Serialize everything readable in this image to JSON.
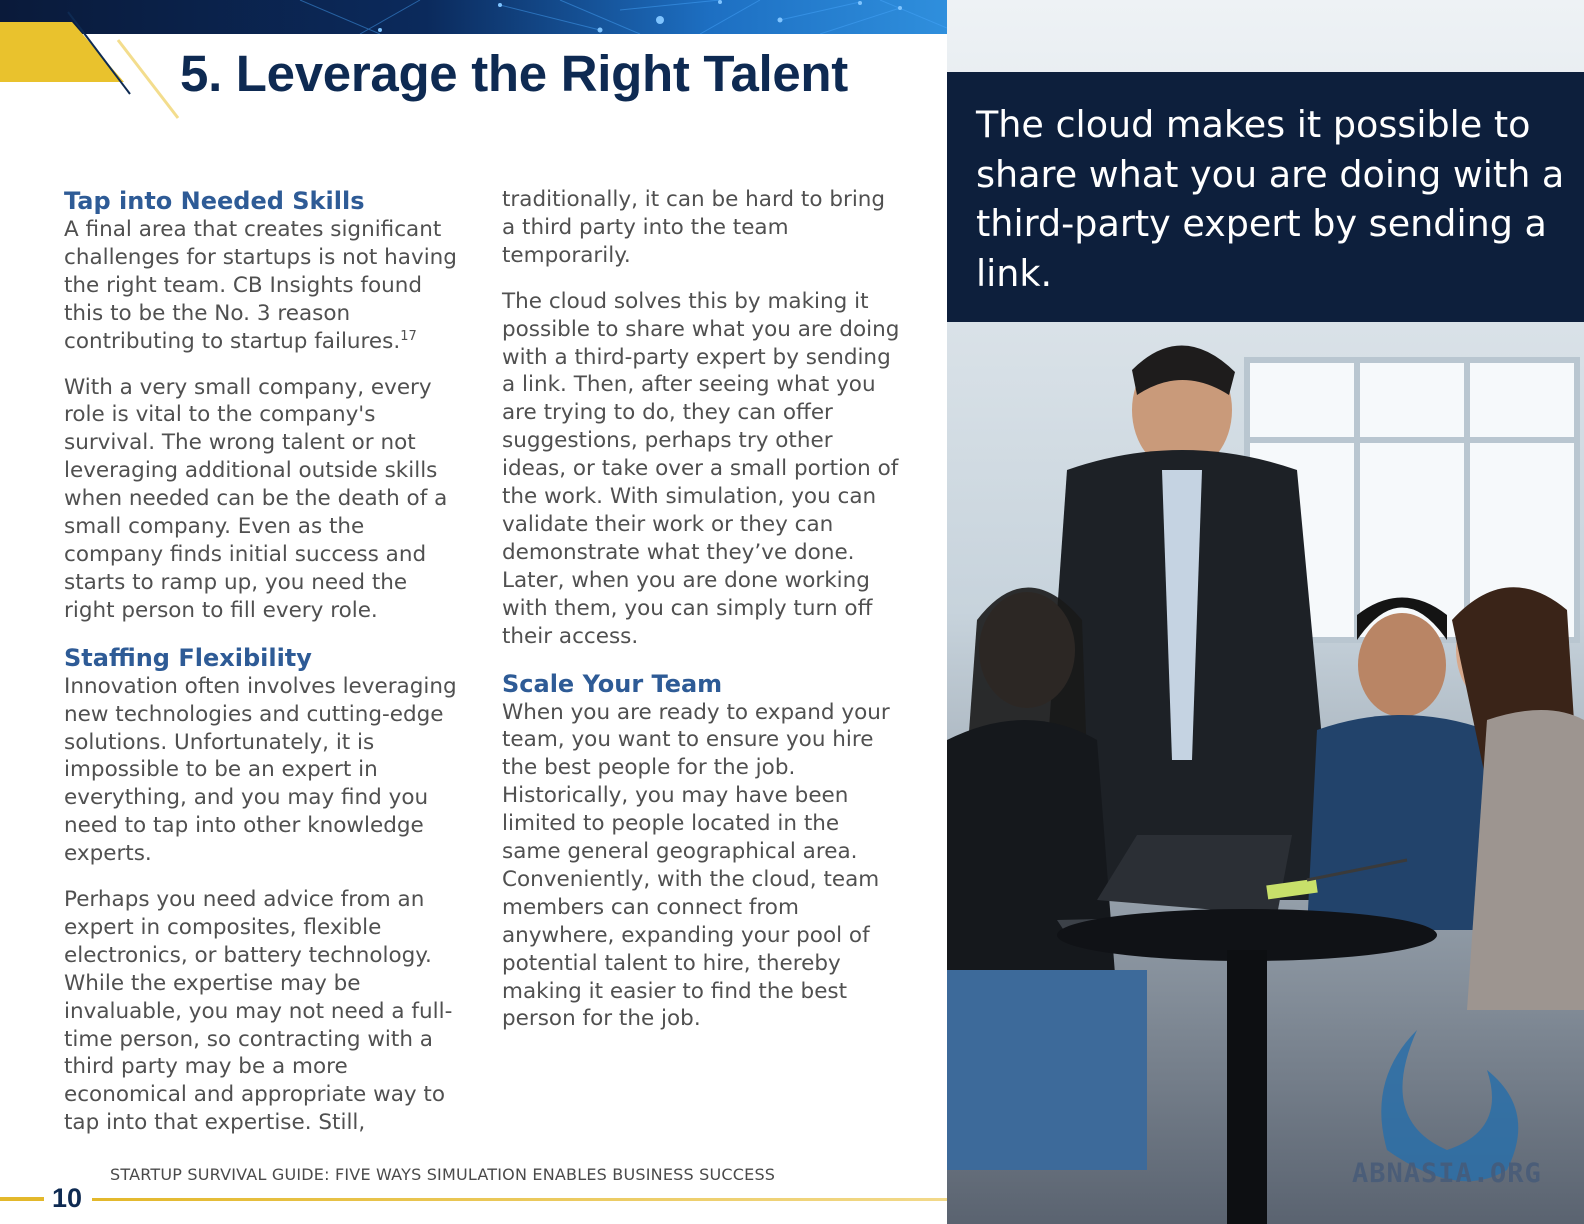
{
  "header": {
    "title": "5. Leverage the Right Talent"
  },
  "left_column": {
    "section1_heading": "Tap into Needed Skills",
    "section1_p1": "A final area that creates significant challenges for startups is not having the right team. CB Insights found this to be the No. 3 reason contributing to startup failures.",
    "section1_p1_footnote": "17",
    "section1_p2": "With a very small company, every role is vital to the company's survival. The wrong talent or not leveraging additional outside skills when needed can be the death of a small company. Even as the company finds initial success and starts to ramp up, you need the right person to fill every role.",
    "section2_heading": "Staffing Flexibility",
    "section2_p1": "Innovation often involves leveraging new technologies and cutting-edge solutions. Unfortunately, it is impossible to be an expert in everything, and you may find you need to tap into other knowledge experts.",
    "section2_p2": "Perhaps you need advice from an expert in composites, flexible electronics, or battery technology. While the expertise may be invaluable, you may not need a full-time person, so contracting with a third party may be a more economical and appropriate way to tap into that expertise. Still,"
  },
  "middle_column": {
    "p1": "traditionally, it can be hard to bring a third party into the team temporarily.",
    "p2": "The cloud solves this by making it possible to share what you are doing with a third-party expert by sending a link. Then, after seeing what you are trying to do, they can offer suggestions, perhaps try other ideas, or take over a small portion of the work. With simulation, you can validate their work or they can demonstrate what they’ve done. Later, when you are done working with them, you can simply turn off their access.",
    "section3_heading": "Scale Your Team",
    "section3_p1": "When you are ready to expand your team, you want to ensure you hire the best people for the job. Historically, you may have been limited to people located in the same general geographical area. Conveniently, with the cloud, team members can connect from anywhere, expanding your pool of potential talent to hire, thereby making it easier to find the best person for the job."
  },
  "callout": {
    "quote": "The cloud makes it possible to share what you are doing with a third-party expert by sending a link."
  },
  "footer": {
    "guide_title": "STARTUP SURVIVAL GUIDE: FIVE WAYS SIMULATION ENABLES BUSINESS SUCCESS",
    "page_number": "10"
  },
  "photo": {
    "watermark": "ABNASIA.ORG"
  },
  "colors": {
    "heading_navy": "#0e2a52",
    "subheading_blue": "#2e5b96",
    "accent_gold": "#e3b82b",
    "quote_box": "#0d1f3c"
  }
}
